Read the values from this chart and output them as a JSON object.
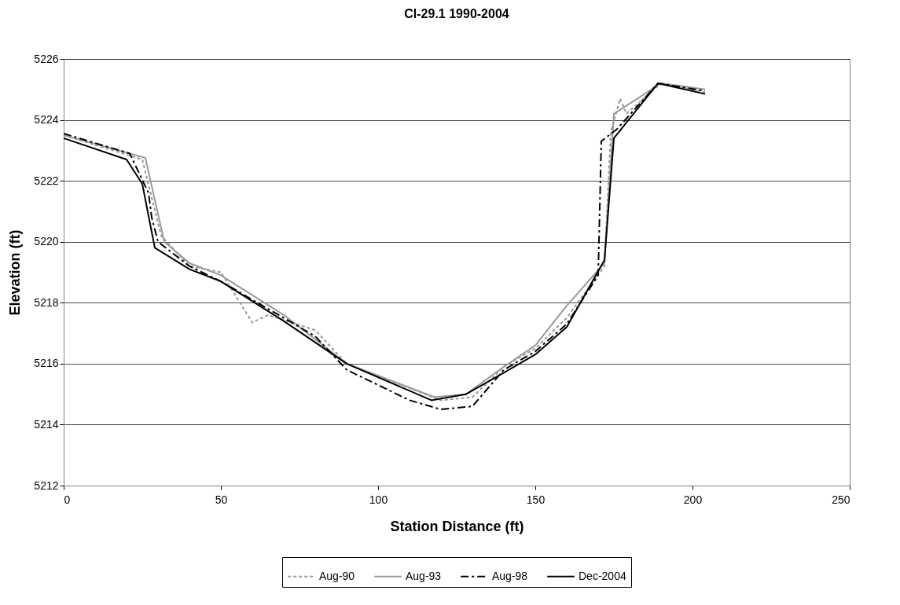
{
  "chart_data": {
    "type": "line",
    "title": "Cl-29.1  1990-2004",
    "xlabel": "Station Distance (ft)",
    "ylabel": "Elevation (ft)",
    "xlim": [
      0,
      250
    ],
    "xticks": [
      0,
      50,
      100,
      150,
      200,
      250
    ],
    "ylim": [
      5212,
      5226
    ],
    "yticks": [
      5212,
      5214,
      5216,
      5218,
      5220,
      5222,
      5224,
      5226
    ],
    "grid": "y",
    "legend": "bottom",
    "marker": "none",
    "series": [
      {
        "name": "Aug-90",
        "color": "#999999",
        "line_style": "dotted",
        "x": [
          0,
          25,
          31,
          40,
          50,
          60,
          65,
          80,
          90,
          120,
          130,
          140,
          150,
          160,
          172,
          174,
          177,
          179,
          190,
          204
        ],
        "values": [
          5223.5,
          5222.7,
          5220.2,
          5219.2,
          5219.0,
          5217.35,
          5217.6,
          5217.1,
          5216.0,
          5214.8,
          5214.9,
          5215.9,
          5216.5,
          5217.5,
          5219.2,
          5223.6,
          5224.7,
          5224.2,
          5225.2,
          5224.9
        ]
      },
      {
        "name": "Aug-93",
        "color": "#999999",
        "line_style": "solid",
        "x": [
          0,
          26,
          32,
          40,
          50,
          70,
          90,
          118,
          128,
          140,
          150,
          160,
          172,
          175,
          190,
          204
        ],
        "values": [
          5223.5,
          5222.75,
          5220.0,
          5219.3,
          5218.9,
          5217.6,
          5216.0,
          5214.9,
          5215.0,
          5215.9,
          5216.6,
          5217.9,
          5219.3,
          5224.2,
          5225.2,
          5225.0
        ]
      },
      {
        "name": "Aug-98",
        "color": "#000000",
        "line_style": "dashed",
        "x": [
          0,
          21,
          27,
          28,
          30,
          40,
          50,
          60,
          70,
          80,
          90,
          110,
          120,
          130,
          140,
          150,
          160,
          170,
          171,
          176,
          189,
          204
        ],
        "values": [
          5223.55,
          5222.9,
          5221.6,
          5220.8,
          5220.0,
          5219.2,
          5218.7,
          5218.1,
          5217.5,
          5216.9,
          5215.8,
          5214.8,
          5214.5,
          5214.6,
          5215.8,
          5216.4,
          5217.3,
          5218.9,
          5223.3,
          5223.7,
          5225.2,
          5224.95
        ]
      },
      {
        "name": "Dec-2004",
        "color": "#000000",
        "line_style": "solid",
        "x": [
          0,
          20,
          25,
          29,
          40,
          50,
          70,
          90,
          117,
          128,
          140,
          150,
          160,
          172,
          175,
          189,
          204
        ],
        "values": [
          5223.4,
          5222.7,
          5221.9,
          5219.8,
          5219.1,
          5218.7,
          5217.4,
          5216.0,
          5214.8,
          5215.0,
          5215.7,
          5216.3,
          5217.2,
          5219.4,
          5223.4,
          5225.2,
          5224.85
        ]
      }
    ]
  }
}
